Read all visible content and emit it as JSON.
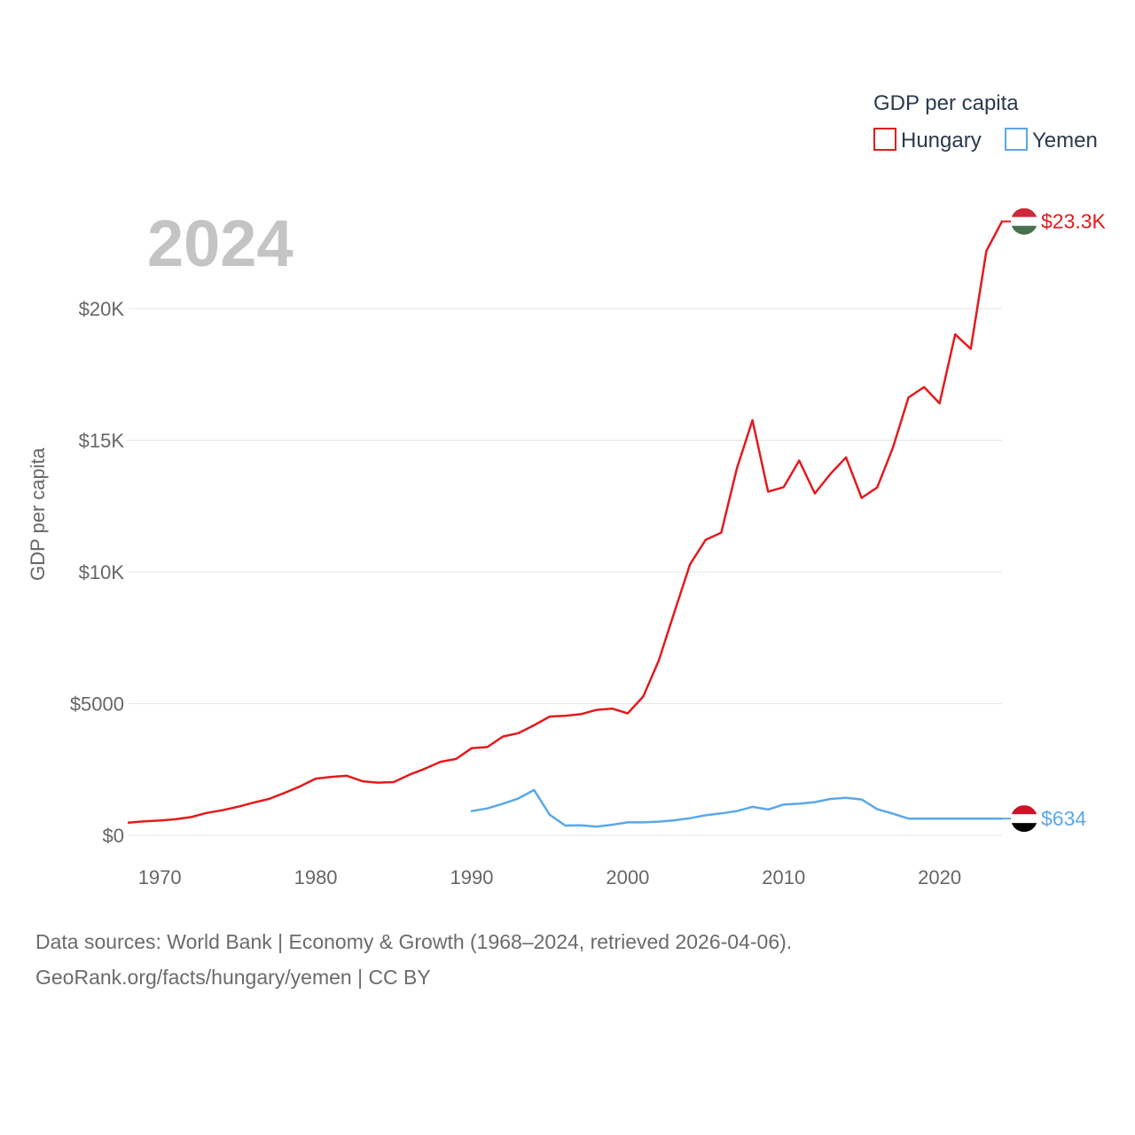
{
  "chart_data": {
    "type": "line",
    "title": "GDP per capita",
    "year_label": "2024",
    "ylabel": "GDP per capita",
    "xlabel": "",
    "xlim": [
      1968,
      2024
    ],
    "ylim": [
      0,
      23300
    ],
    "x_ticks": [
      1970,
      1980,
      1990,
      2000,
      2010,
      2020
    ],
    "x_tick_labels": [
      "1970",
      "1980",
      "1990",
      "2000",
      "2010",
      "2020"
    ],
    "y_ticks": [
      0,
      5000,
      10000,
      15000,
      20000
    ],
    "y_tick_labels": [
      "$0",
      "$5000",
      "$10K",
      "$15K",
      "$20K"
    ],
    "legend": {
      "title": "GDP per capita",
      "placement": "top-right"
    },
    "series": [
      {
        "name": "Hungary",
        "color": "#e31a1c",
        "end_label": "$23.3K",
        "flag_colors": [
          "#ce2939",
          "#ffffff",
          "#477050"
        ],
        "x": [
          1968,
          1969,
          1970,
          1971,
          1972,
          1973,
          1974,
          1975,
          1976,
          1977,
          1978,
          1979,
          1980,
          1981,
          1982,
          1983,
          1984,
          1985,
          1986,
          1987,
          1988,
          1989,
          1990,
          1991,
          1992,
          1993,
          1994,
          1995,
          1996,
          1997,
          1998,
          1999,
          2000,
          2001,
          2002,
          2003,
          2004,
          2005,
          2006,
          2007,
          2008,
          2009,
          2010,
          2011,
          2012,
          2013,
          2014,
          2015,
          2016,
          2017,
          2018,
          2019,
          2020,
          2021,
          2022,
          2023,
          2024
        ],
        "values": [
          480,
          530,
          560,
          610,
          690,
          850,
          950,
          1080,
          1240,
          1380,
          1610,
          1860,
          2150,
          2220,
          2260,
          2050,
          2000,
          2020,
          2300,
          2530,
          2790,
          2900,
          3310,
          3350,
          3750,
          3880,
          4180,
          4510,
          4540,
          4600,
          4760,
          4810,
          4630,
          5270,
          6640,
          8480,
          10290,
          11220,
          11490,
          13930,
          15760,
          13050,
          13220,
          14230,
          12980,
          13720,
          14350,
          12810,
          13210,
          14710,
          16620,
          17020,
          16400,
          19020,
          18470,
          22190,
          23310
        ]
      },
      {
        "name": "Yemen",
        "color": "#5aa8e8",
        "end_label": "$634",
        "flag_colors": [
          "#ce1126",
          "#ffffff",
          "#000000"
        ],
        "x": [
          1990,
          1991,
          1992,
          1993,
          1994,
          1995,
          1996,
          1997,
          1998,
          1999,
          2000,
          2001,
          2002,
          2003,
          2004,
          2005,
          2006,
          2007,
          2008,
          2009,
          2010,
          2011,
          2012,
          2013,
          2014,
          2015,
          2016,
          2017,
          2018,
          2019,
          2020,
          2021,
          2022,
          2023,
          2024
        ],
        "values": [
          920,
          1020,
          1200,
          1400,
          1720,
          780,
          370,
          380,
          330,
          400,
          490,
          490,
          520,
          570,
          650,
          760,
          830,
          920,
          1080,
          980,
          1170,
          1200,
          1260,
          1380,
          1420,
          1360,
          990,
          820,
          634,
          634,
          634,
          634,
          634,
          634,
          634
        ]
      }
    ]
  },
  "source": {
    "line1": "Data sources: World Bank | Economy & Growth (1968–2024, retrieved 2026-04-06).",
    "line2": "GeoRank.org/facts/hungary/yemen | CC BY"
  }
}
